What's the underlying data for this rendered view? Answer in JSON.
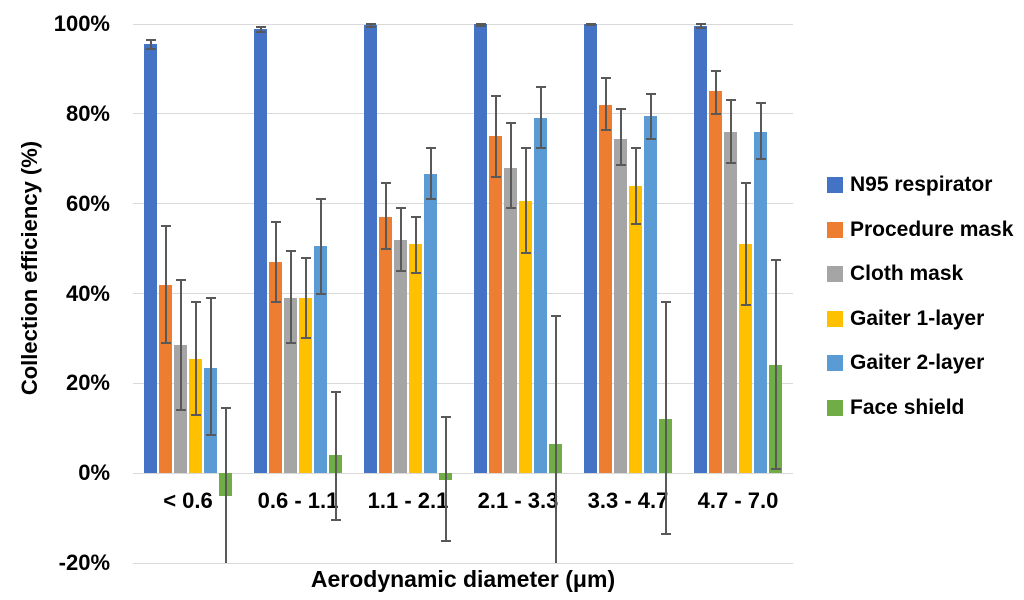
{
  "chart_data": {
    "type": "bar",
    "title": "",
    "xlabel": "Aerodynamic diameter (μm)",
    "ylabel": "Collection efficiency (%)",
    "ylim": [
      -20,
      100
    ],
    "yticks": [
      100,
      80,
      60,
      40,
      20,
      0,
      -20
    ],
    "ytick_labels": [
      "100%",
      "80%",
      "60%",
      "40%",
      "20%",
      "0%",
      "-20%"
    ],
    "grid": true,
    "legend_position": "right",
    "error_bars": true,
    "categories": [
      "< 0.6",
      "0.6 - 1.1",
      "1.1 - 2.1",
      "2.1 - 3.3",
      "3.3 - 4.7",
      "4.7 - 7.0"
    ],
    "series": [
      {
        "name": "N95 respirator",
        "color": "#4472C4",
        "values": [
          95.5,
          98.8,
          99.7,
          100,
          100,
          99.5
        ],
        "err_lo": [
          94.5,
          98.3,
          99.3,
          99.6,
          99.7,
          99
        ],
        "err_hi": [
          96.5,
          99.3,
          100,
          100,
          100,
          100
        ],
        "err_lo_clipped": [
          false,
          false,
          false,
          false,
          false,
          false
        ]
      },
      {
        "name": "Procedure mask",
        "color": "#ED7D31",
        "values": [
          42,
          47,
          57,
          75,
          82,
          85
        ],
        "err_lo": [
          29,
          38,
          50,
          66,
          76.5,
          80
        ],
        "err_hi": [
          55,
          56,
          64.5,
          84,
          88,
          89.5
        ],
        "err_lo_clipped": [
          false,
          false,
          false,
          false,
          false,
          false
        ]
      },
      {
        "name": "Cloth mask",
        "color": "#A5A5A5",
        "values": [
          28.5,
          39,
          52,
          68,
          74.5,
          76
        ],
        "err_lo": [
          14,
          29,
          45,
          59,
          68.5,
          69
        ],
        "err_hi": [
          43,
          49.5,
          59,
          78,
          81,
          83
        ],
        "err_lo_clipped": [
          false,
          false,
          false,
          false,
          false,
          false
        ]
      },
      {
        "name": "Gaiter 1-layer",
        "color": "#FFC000",
        "values": [
          25.5,
          39,
          51,
          60.5,
          64,
          51
        ],
        "err_lo": [
          13,
          30,
          44.5,
          49,
          55.5,
          37.5
        ],
        "err_hi": [
          38,
          48,
          57,
          72.5,
          72.5,
          64.5
        ],
        "err_lo_clipped": [
          false,
          false,
          false,
          false,
          false,
          false
        ]
      },
      {
        "name": "Gaiter 2-layer",
        "color": "#5B9BD5",
        "values": [
          23.5,
          50.5,
          66.5,
          79,
          79.5,
          76
        ],
        "err_lo": [
          8.5,
          40,
          61,
          72.5,
          74.5,
          70
        ],
        "err_hi": [
          39,
          61,
          72.5,
          86,
          84.5,
          82.5
        ],
        "err_lo_clipped": [
          false,
          false,
          false,
          false,
          false,
          false
        ]
      },
      {
        "name": "Face shield",
        "color": "#70AD47",
        "values": [
          -5,
          4,
          -1.5,
          6.5,
          12,
          24
        ],
        "err_lo": [
          -20,
          -10.5,
          -15,
          -20,
          -13.5,
          1
        ],
        "err_hi": [
          14.5,
          18,
          12.5,
          35,
          38,
          47.5
        ],
        "err_lo_clipped": [
          true,
          false,
          false,
          true,
          false,
          false
        ]
      }
    ],
    "gridline_color": "#D9D9D9",
    "errorbar_color": "#595959",
    "text_color": "#000000",
    "background_color": "#FFFFFF"
  }
}
